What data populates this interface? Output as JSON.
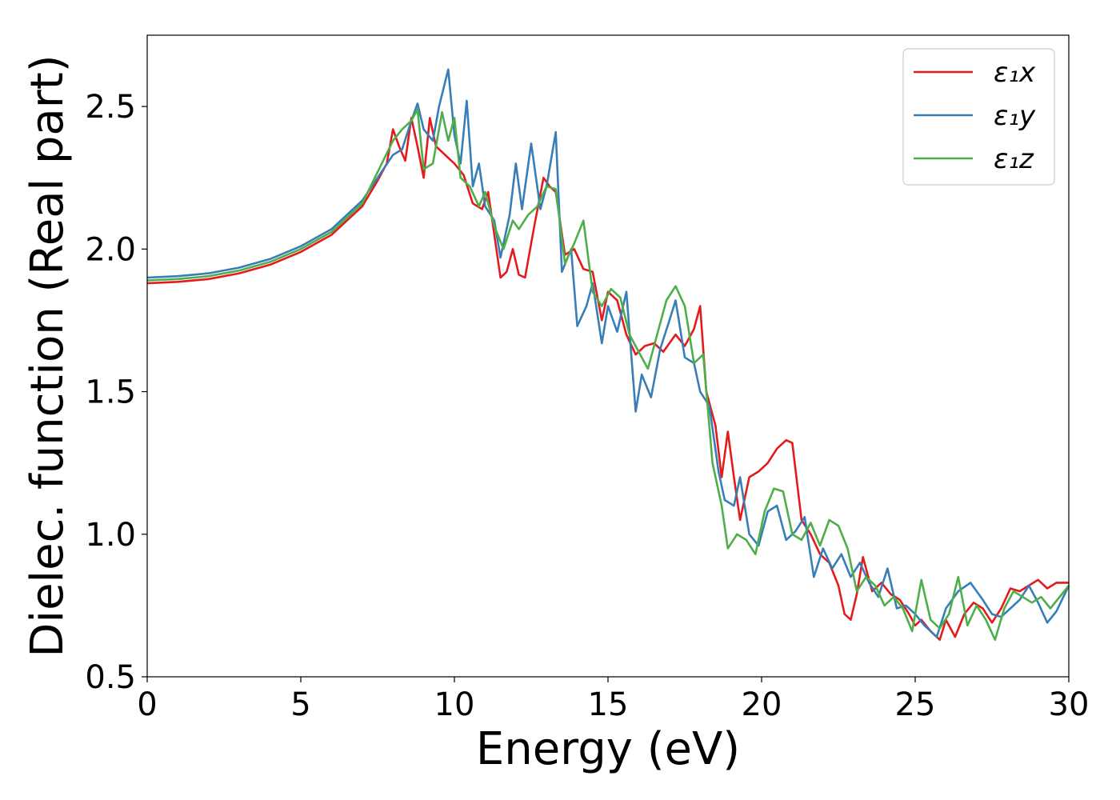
{
  "chart_data": {
    "type": "line",
    "title": "",
    "xlabel": "Energy (eV)",
    "ylabel": "Dielec. function (Real part)",
    "xlim": [
      0,
      30
    ],
    "ylim": [
      0.5,
      2.75
    ],
    "xticks": [
      "0",
      "5",
      "10",
      "15",
      "20",
      "25",
      "30"
    ],
    "yticks": [
      "0.5",
      "1.0",
      "1.5",
      "2.0",
      "2.5"
    ],
    "grid": false,
    "legend_position": "top-right",
    "series": [
      {
        "name": "ε₁x",
        "color": "#e41a1c",
        "points": [
          [
            0,
            1.88
          ],
          [
            1,
            1.885
          ],
          [
            2,
            1.895
          ],
          [
            3,
            1.915
          ],
          [
            4,
            1.945
          ],
          [
            5,
            1.99
          ],
          [
            6,
            2.05
          ],
          [
            7,
            2.15
          ],
          [
            7.5,
            2.24
          ],
          [
            7.8,
            2.3
          ],
          [
            8.0,
            2.42
          ],
          [
            8.2,
            2.36
          ],
          [
            8.4,
            2.31
          ],
          [
            8.6,
            2.46
          ],
          [
            8.8,
            2.36
          ],
          [
            9.0,
            2.25
          ],
          [
            9.2,
            2.46
          ],
          [
            9.4,
            2.36
          ],
          [
            9.6,
            2.34
          ],
          [
            9.8,
            2.32
          ],
          [
            10.0,
            2.3
          ],
          [
            10.3,
            2.26
          ],
          [
            10.6,
            2.16
          ],
          [
            10.9,
            2.14
          ],
          [
            11.1,
            2.2
          ],
          [
            11.3,
            2.05
          ],
          [
            11.5,
            1.9
          ],
          [
            11.7,
            1.92
          ],
          [
            11.9,
            2.0
          ],
          [
            12.1,
            1.91
          ],
          [
            12.3,
            1.9
          ],
          [
            12.6,
            2.08
          ],
          [
            12.9,
            2.25
          ],
          [
            13.1,
            2.22
          ],
          [
            13.3,
            2.2
          ],
          [
            13.6,
            1.98
          ],
          [
            13.9,
            2.0
          ],
          [
            14.2,
            1.93
          ],
          [
            14.5,
            1.92
          ],
          [
            14.8,
            1.75
          ],
          [
            15.0,
            1.85
          ],
          [
            15.3,
            1.82
          ],
          [
            15.6,
            1.7
          ],
          [
            15.9,
            1.63
          ],
          [
            16.2,
            1.66
          ],
          [
            16.5,
            1.67
          ],
          [
            16.8,
            1.64
          ],
          [
            17.2,
            1.7
          ],
          [
            17.5,
            1.66
          ],
          [
            17.8,
            1.72
          ],
          [
            18.0,
            1.8
          ],
          [
            18.2,
            1.5
          ],
          [
            18.5,
            1.38
          ],
          [
            18.7,
            1.2
          ],
          [
            18.9,
            1.36
          ],
          [
            19.1,
            1.2
          ],
          [
            19.3,
            1.05
          ],
          [
            19.6,
            1.2
          ],
          [
            19.9,
            1.22
          ],
          [
            20.2,
            1.25
          ],
          [
            20.5,
            1.3
          ],
          [
            20.8,
            1.33
          ],
          [
            21.0,
            1.32
          ],
          [
            21.3,
            1.05
          ],
          [
            21.6,
            1.0
          ],
          [
            21.9,
            0.93
          ],
          [
            22.2,
            0.9
          ],
          [
            22.5,
            0.82
          ],
          [
            22.7,
            0.72
          ],
          [
            22.9,
            0.7
          ],
          [
            23.1,
            0.79
          ],
          [
            23.3,
            0.92
          ],
          [
            23.6,
            0.8
          ],
          [
            23.9,
            0.83
          ],
          [
            24.2,
            0.79
          ],
          [
            24.5,
            0.77
          ],
          [
            24.8,
            0.72
          ],
          [
            25.0,
            0.68
          ],
          [
            25.2,
            0.7
          ],
          [
            25.5,
            0.66
          ],
          [
            25.8,
            0.63
          ],
          [
            26.0,
            0.7
          ],
          [
            26.3,
            0.64
          ],
          [
            26.6,
            0.72
          ],
          [
            26.9,
            0.76
          ],
          [
            27.2,
            0.74
          ],
          [
            27.5,
            0.69
          ],
          [
            27.8,
            0.74
          ],
          [
            28.1,
            0.81
          ],
          [
            28.4,
            0.8
          ],
          [
            28.7,
            0.82
          ],
          [
            29.0,
            0.84
          ],
          [
            29.3,
            0.81
          ],
          [
            29.6,
            0.83
          ],
          [
            30.0,
            0.83
          ]
        ]
      },
      {
        "name": "ε₁y",
        "color": "#377eb8",
        "points": [
          [
            0,
            1.9
          ],
          [
            1,
            1.905
          ],
          [
            2,
            1.915
          ],
          [
            3,
            1.935
          ],
          [
            4,
            1.965
          ],
          [
            5,
            2.01
          ],
          [
            6,
            2.07
          ],
          [
            7,
            2.17
          ],
          [
            7.5,
            2.25
          ],
          [
            8.0,
            2.33
          ],
          [
            8.3,
            2.35
          ],
          [
            8.6,
            2.45
          ],
          [
            8.8,
            2.51
          ],
          [
            9.0,
            2.42
          ],
          [
            9.3,
            2.38
          ],
          [
            9.5,
            2.5
          ],
          [
            9.8,
            2.63
          ],
          [
            10.0,
            2.4
          ],
          [
            10.2,
            2.3
          ],
          [
            10.4,
            2.52
          ],
          [
            10.6,
            2.22
          ],
          [
            10.8,
            2.3
          ],
          [
            11.0,
            2.15
          ],
          [
            11.3,
            2.1
          ],
          [
            11.5,
            1.97
          ],
          [
            11.8,
            2.12
          ],
          [
            12.0,
            2.3
          ],
          [
            12.2,
            2.14
          ],
          [
            12.5,
            2.37
          ],
          [
            12.8,
            2.14
          ],
          [
            13.0,
            2.22
          ],
          [
            13.3,
            2.41
          ],
          [
            13.5,
            1.92
          ],
          [
            13.8,
            2.0
          ],
          [
            14.0,
            1.73
          ],
          [
            14.3,
            1.8
          ],
          [
            14.5,
            1.88
          ],
          [
            14.8,
            1.67
          ],
          [
            15.0,
            1.8
          ],
          [
            15.3,
            1.71
          ],
          [
            15.6,
            1.85
          ],
          [
            15.9,
            1.43
          ],
          [
            16.1,
            1.56
          ],
          [
            16.4,
            1.48
          ],
          [
            16.7,
            1.65
          ],
          [
            17.0,
            1.75
          ],
          [
            17.2,
            1.82
          ],
          [
            17.5,
            1.62
          ],
          [
            17.8,
            1.6
          ],
          [
            18.0,
            1.5
          ],
          [
            18.3,
            1.45
          ],
          [
            18.6,
            1.22
          ],
          [
            18.8,
            1.12
          ],
          [
            19.1,
            1.1
          ],
          [
            19.3,
            1.2
          ],
          [
            19.6,
            1.0
          ],
          [
            19.9,
            0.96
          ],
          [
            20.2,
            1.08
          ],
          [
            20.5,
            1.1
          ],
          [
            20.8,
            0.98
          ],
          [
            21.1,
            1.01
          ],
          [
            21.4,
            1.06
          ],
          [
            21.7,
            0.85
          ],
          [
            22.0,
            0.95
          ],
          [
            22.3,
            0.88
          ],
          [
            22.6,
            0.93
          ],
          [
            22.9,
            0.85
          ],
          [
            23.2,
            0.9
          ],
          [
            23.5,
            0.83
          ],
          [
            23.8,
            0.78
          ],
          [
            24.1,
            0.88
          ],
          [
            24.4,
            0.74
          ],
          [
            24.7,
            0.75
          ],
          [
            25.0,
            0.72
          ],
          [
            25.3,
            0.68
          ],
          [
            25.7,
            0.64
          ],
          [
            26.0,
            0.74
          ],
          [
            26.4,
            0.8
          ],
          [
            26.8,
            0.83
          ],
          [
            27.2,
            0.77
          ],
          [
            27.5,
            0.72
          ],
          [
            27.8,
            0.71
          ],
          [
            28.1,
            0.74
          ],
          [
            28.4,
            0.77
          ],
          [
            28.7,
            0.82
          ],
          [
            29.0,
            0.76
          ],
          [
            29.3,
            0.69
          ],
          [
            29.6,
            0.73
          ],
          [
            30.0,
            0.82
          ]
        ]
      },
      {
        "name": "ε₁z",
        "color": "#4daf4a",
        "points": [
          [
            0,
            1.89
          ],
          [
            1,
            1.895
          ],
          [
            2,
            1.905
          ],
          [
            3,
            1.925
          ],
          [
            4,
            1.955
          ],
          [
            5,
            2.0
          ],
          [
            6,
            2.06
          ],
          [
            7,
            2.16
          ],
          [
            7.5,
            2.27
          ],
          [
            8.0,
            2.38
          ],
          [
            8.3,
            2.42
          ],
          [
            8.6,
            2.45
          ],
          [
            8.8,
            2.49
          ],
          [
            9.0,
            2.28
          ],
          [
            9.3,
            2.3
          ],
          [
            9.6,
            2.48
          ],
          [
            9.8,
            2.38
          ],
          [
            10.0,
            2.46
          ],
          [
            10.2,
            2.25
          ],
          [
            10.5,
            2.22
          ],
          [
            10.8,
            2.15
          ],
          [
            11.0,
            2.2
          ],
          [
            11.3,
            2.08
          ],
          [
            11.6,
            2.0
          ],
          [
            11.9,
            2.1
          ],
          [
            12.1,
            2.07
          ],
          [
            12.4,
            2.12
          ],
          [
            12.7,
            2.15
          ],
          [
            13.0,
            2.22
          ],
          [
            13.3,
            2.21
          ],
          [
            13.6,
            1.95
          ],
          [
            13.9,
            2.02
          ],
          [
            14.2,
            2.1
          ],
          [
            14.5,
            1.85
          ],
          [
            14.8,
            1.8
          ],
          [
            15.1,
            1.86
          ],
          [
            15.4,
            1.83
          ],
          [
            15.7,
            1.7
          ],
          [
            16.0,
            1.64
          ],
          [
            16.3,
            1.58
          ],
          [
            16.6,
            1.7
          ],
          [
            16.9,
            1.82
          ],
          [
            17.2,
            1.87
          ],
          [
            17.5,
            1.8
          ],
          [
            17.8,
            1.6
          ],
          [
            18.1,
            1.63
          ],
          [
            18.4,
            1.25
          ],
          [
            18.7,
            1.1
          ],
          [
            18.9,
            0.95
          ],
          [
            19.2,
            1.0
          ],
          [
            19.5,
            0.98
          ],
          [
            19.8,
            0.93
          ],
          [
            20.1,
            1.08
          ],
          [
            20.4,
            1.16
          ],
          [
            20.7,
            1.15
          ],
          [
            21.0,
            1.0
          ],
          [
            21.3,
            0.98
          ],
          [
            21.6,
            1.04
          ],
          [
            21.9,
            0.96
          ],
          [
            22.2,
            1.05
          ],
          [
            22.5,
            1.03
          ],
          [
            22.8,
            0.95
          ],
          [
            23.1,
            0.8
          ],
          [
            23.4,
            0.85
          ],
          [
            23.7,
            0.82
          ],
          [
            24.0,
            0.75
          ],
          [
            24.3,
            0.78
          ],
          [
            24.6,
            0.74
          ],
          [
            24.9,
            0.66
          ],
          [
            25.2,
            0.84
          ],
          [
            25.5,
            0.7
          ],
          [
            25.8,
            0.67
          ],
          [
            26.1,
            0.72
          ],
          [
            26.4,
            0.85
          ],
          [
            26.7,
            0.68
          ],
          [
            27.0,
            0.75
          ],
          [
            27.3,
            0.7
          ],
          [
            27.6,
            0.63
          ],
          [
            27.9,
            0.74
          ],
          [
            28.2,
            0.8
          ],
          [
            28.5,
            0.78
          ],
          [
            28.8,
            0.76
          ],
          [
            29.1,
            0.78
          ],
          [
            29.4,
            0.74
          ],
          [
            29.7,
            0.78
          ],
          [
            30.0,
            0.82
          ]
        ]
      }
    ]
  }
}
